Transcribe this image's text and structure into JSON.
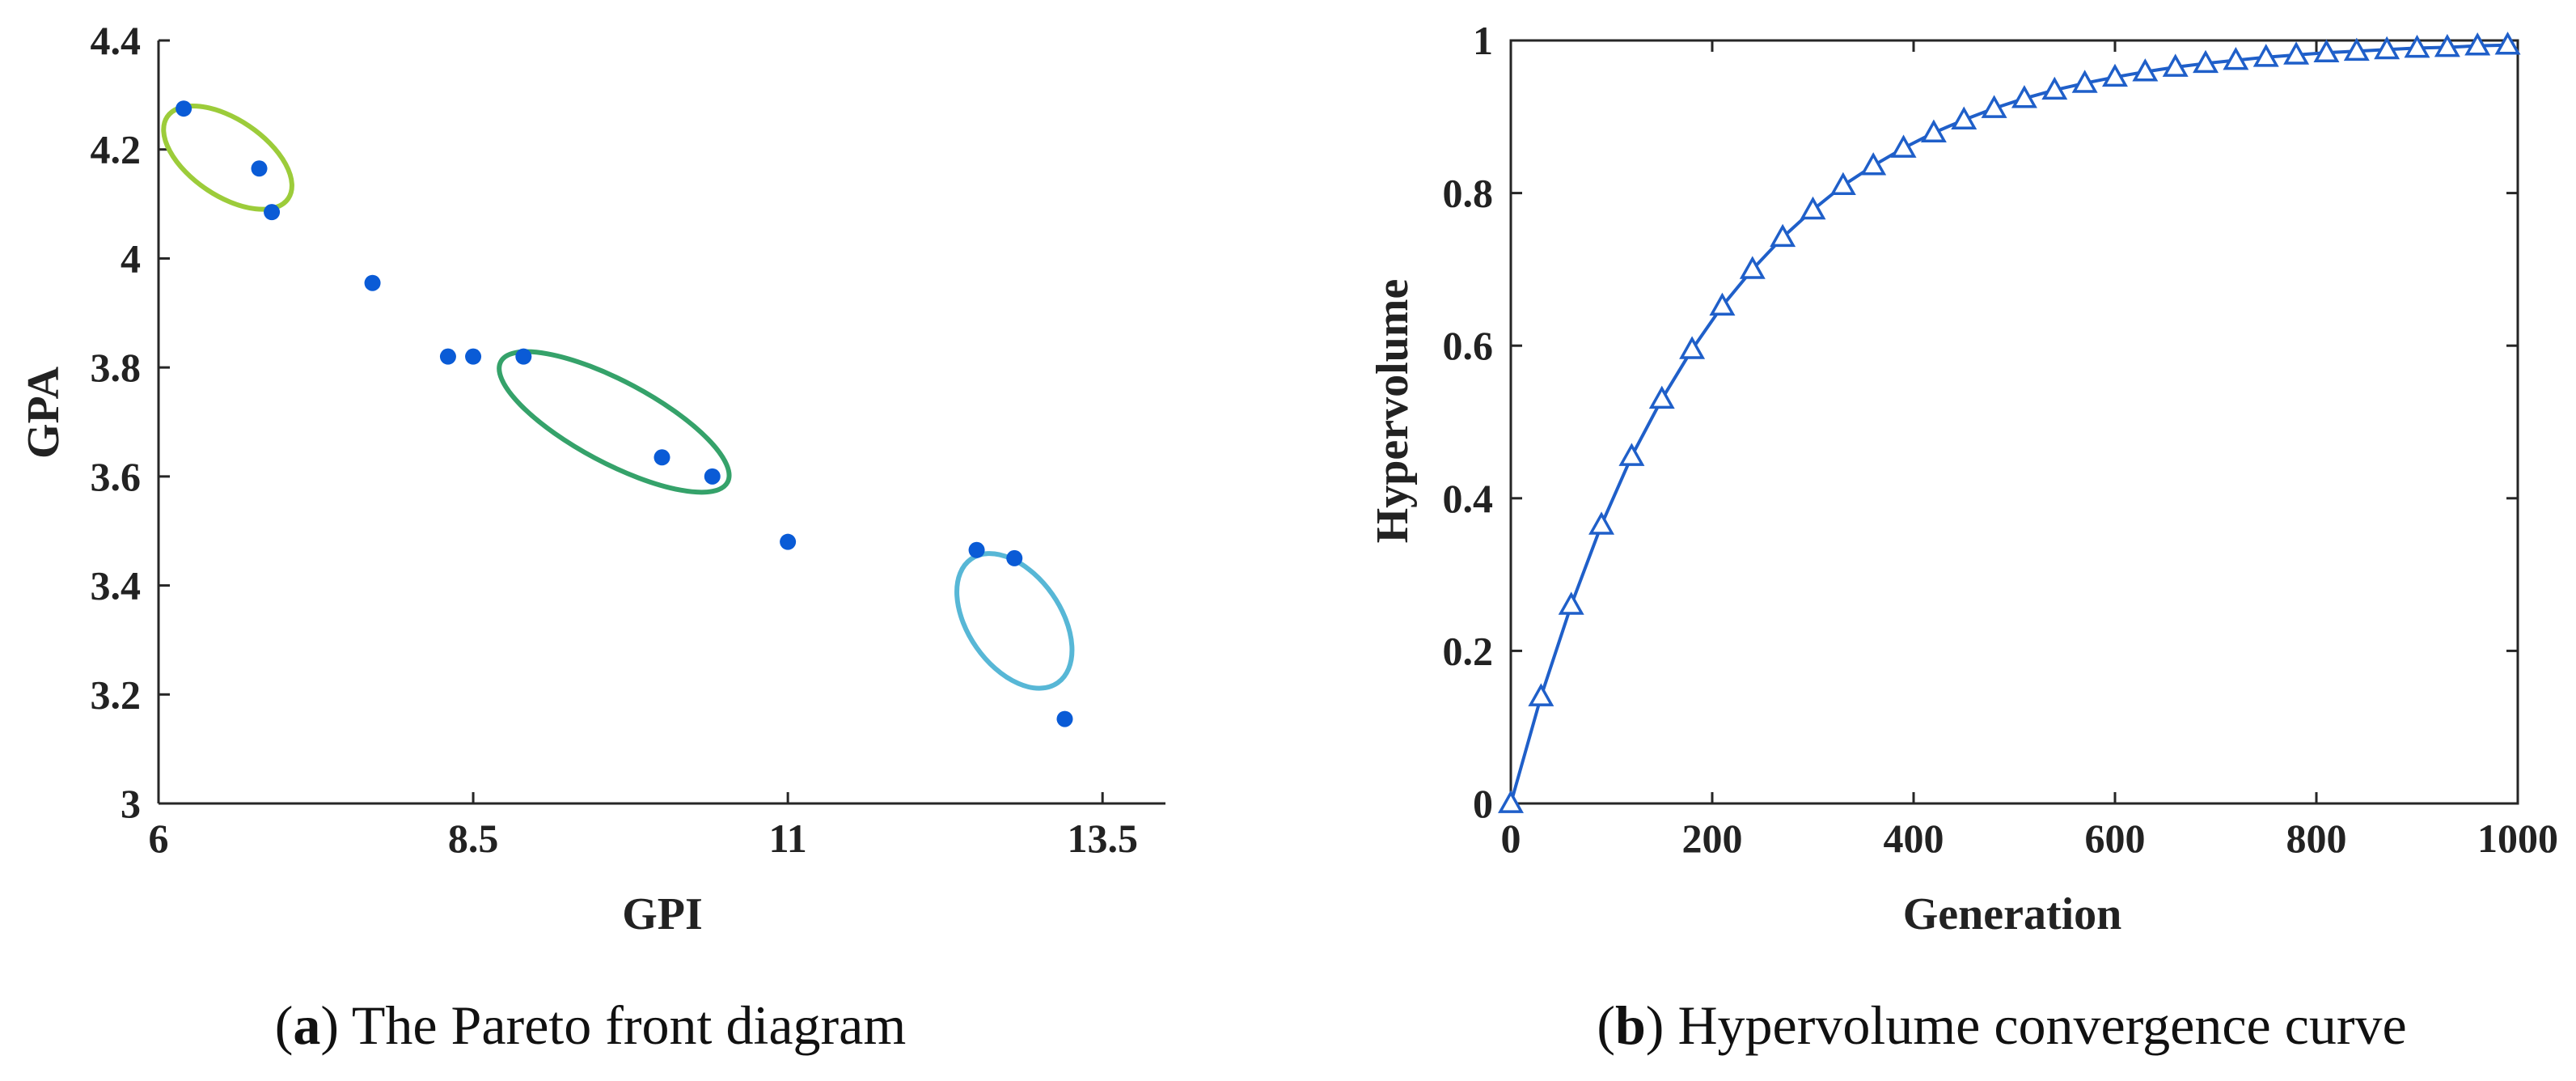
{
  "chart_data": [
    {
      "type": "scatter",
      "title": "",
      "xlabel": "GPI",
      "ylabel": "GPA",
      "xlim": [
        6,
        14
      ],
      "ylim": [
        3,
        4.4
      ],
      "xticks": [
        6,
        8.5,
        11,
        13.5
      ],
      "xtick_labels": [
        "6",
        "8.5",
        "11",
        "13.5"
      ],
      "yticks": [
        3,
        3.2,
        3.4,
        3.6,
        3.8,
        4,
        4.2,
        4.4
      ],
      "ytick_labels": [
        "3",
        "3.2",
        "3.4",
        "3.6",
        "3.8",
        "4",
        "4.2",
        "4.4"
      ],
      "points": [
        {
          "x": 6.2,
          "y": 4.275
        },
        {
          "x": 6.8,
          "y": 4.165
        },
        {
          "x": 6.9,
          "y": 4.085
        },
        {
          "x": 7.7,
          "y": 3.955
        },
        {
          "x": 8.3,
          "y": 3.82
        },
        {
          "x": 8.5,
          "y": 3.82
        },
        {
          "x": 8.9,
          "y": 3.82
        },
        {
          "x": 10.0,
          "y": 3.635
        },
        {
          "x": 10.4,
          "y": 3.6
        },
        {
          "x": 11.0,
          "y": 3.48
        },
        {
          "x": 12.5,
          "y": 3.465
        },
        {
          "x": 12.8,
          "y": 3.45
        },
        {
          "x": 13.2,
          "y": 3.155
        }
      ],
      "marker_color": "#0a5bd6",
      "annotations": [
        {
          "name": "cluster-1-ellipse",
          "cx": 6.55,
          "cy": 4.185,
          "rx": 0.58,
          "ry": 0.07,
          "angle_deg": 34,
          "color": "#9ccc3a"
        },
        {
          "name": "cluster-2-ellipse",
          "cx": 9.62,
          "cy": 3.7,
          "rx": 1.02,
          "ry": 0.075,
          "angle_deg": 28,
          "color": "#35a26a"
        },
        {
          "name": "cluster-3-ellipse",
          "cx": 12.8,
          "cy": 3.335,
          "rx": 0.6,
          "ry": 0.085,
          "angle_deg": 55,
          "color": "#57b7d6"
        }
      ],
      "caption_letter": "a",
      "caption_text": " The Pareto front diagram"
    },
    {
      "type": "line",
      "title": "",
      "xlabel": "Generation",
      "ylabel": "Hypervolume",
      "xlim": [
        0,
        1000
      ],
      "ylim": [
        0,
        1
      ],
      "xticks": [
        0,
        200,
        400,
        600,
        800,
        1000
      ],
      "xtick_labels": [
        "0",
        "200",
        "400",
        "600",
        "800",
        "1000"
      ],
      "yticks": [
        0,
        0.2,
        0.4,
        0.6,
        0.8,
        1
      ],
      "ytick_labels": [
        "0",
        "0.2",
        "0.4",
        "0.6",
        "0.8",
        "1"
      ],
      "series": [
        {
          "name": "Hypervolume",
          "color": "#1f5fc9",
          "marker": "triangle",
          "x": [
            0,
            30,
            60,
            90,
            120,
            150,
            180,
            210,
            240,
            270,
            300,
            330,
            360,
            390,
            420,
            450,
            480,
            510,
            540,
            570,
            600,
            630,
            660,
            690,
            720,
            750,
            780,
            810,
            840,
            870,
            900,
            930,
            960,
            990
          ],
          "y": [
            0,
            0.14,
            0.26,
            0.365,
            0.455,
            0.53,
            0.595,
            0.652,
            0.7,
            0.742,
            0.778,
            0.81,
            0.836,
            0.859,
            0.879,
            0.896,
            0.911,
            0.924,
            0.935,
            0.944,
            0.952,
            0.959,
            0.965,
            0.97,
            0.974,
            0.978,
            0.981,
            0.984,
            0.986,
            0.988,
            0.99,
            0.991,
            0.993,
            0.994
          ]
        }
      ],
      "caption_letter": "b",
      "caption_text": " Hypervolume convergence curve"
    }
  ]
}
